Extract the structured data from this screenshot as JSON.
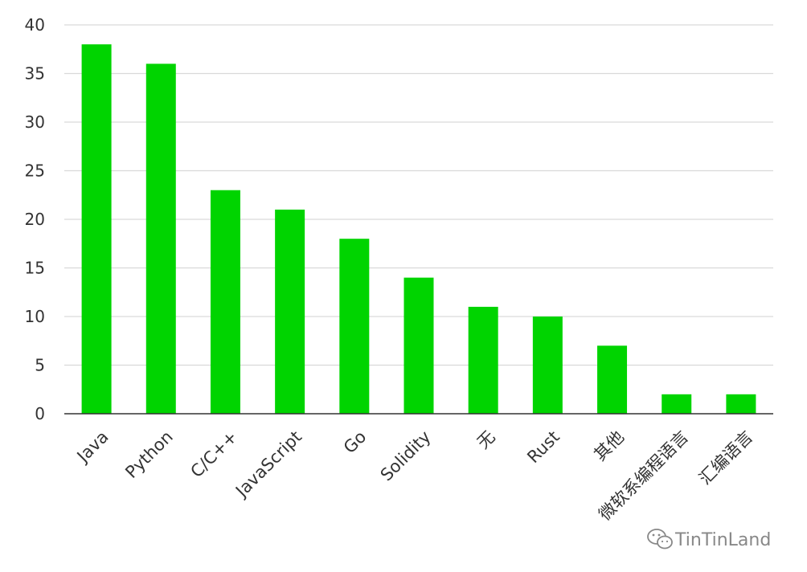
{
  "chart_data": {
    "type": "bar",
    "title": "",
    "xlabel": "",
    "ylabel": "",
    "categories": [
      "Java",
      "Python",
      "C/C++",
      "JavaScript",
      "Go",
      "Solidity",
      "无",
      "Rust",
      "其他",
      "微软系编程语言",
      "汇编语言"
    ],
    "values": [
      38,
      36,
      23,
      21,
      18,
      14,
      11,
      10,
      7,
      2,
      2
    ],
    "ylim": [
      0,
      40
    ],
    "yticks": [
      0,
      5,
      10,
      15,
      20,
      25,
      30,
      35,
      40
    ],
    "grid": true,
    "legend": "none",
    "bar_color": "#00d400",
    "grid_color": "#d9d9d9",
    "axis_color": "#333333"
  },
  "watermark": {
    "text": "TinTinLand",
    "icon": "wechat-icon"
  }
}
